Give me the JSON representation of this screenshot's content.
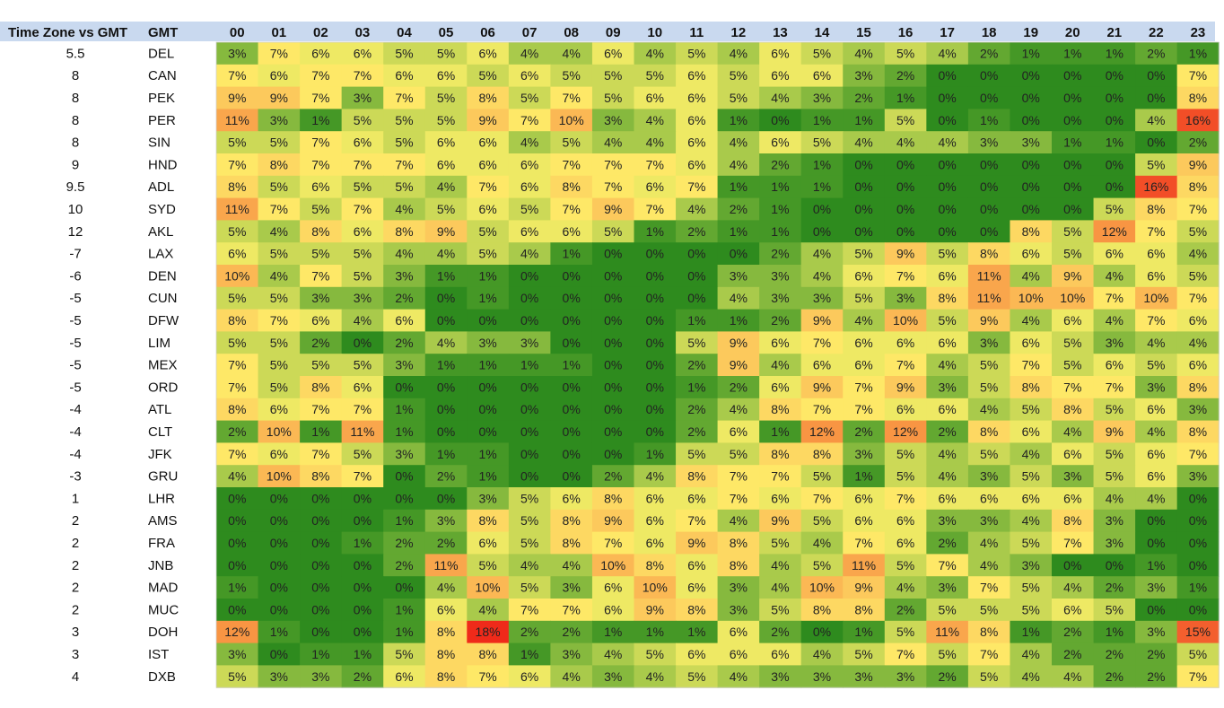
{
  "chart_data": {
    "type": "heatmap",
    "header": {
      "tz_label": "Time Zone vs GMT",
      "code_label": "GMT"
    },
    "columns": [
      "00",
      "01",
      "02",
      "03",
      "04",
      "05",
      "06",
      "07",
      "08",
      "09",
      "10",
      "11",
      "12",
      "13",
      "14",
      "15",
      "16",
      "17",
      "18",
      "19",
      "20",
      "21",
      "22",
      "23"
    ],
    "rows": [
      {
        "tz": "5.5",
        "code": "DEL",
        "values": [
          3,
          7,
          6,
          6,
          5,
          5,
          6,
          4,
          4,
          6,
          4,
          5,
          4,
          6,
          5,
          4,
          5,
          4,
          2,
          1,
          1,
          1,
          2,
          1
        ]
      },
      {
        "tz": "8",
        "code": "CAN",
        "values": [
          7,
          6,
          7,
          7,
          6,
          6,
          5,
          6,
          5,
          5,
          5,
          6,
          5,
          6,
          6,
          3,
          2,
          0,
          0,
          0,
          0,
          0,
          0,
          7
        ]
      },
      {
        "tz": "8",
        "code": "PEK",
        "values": [
          9,
          9,
          7,
          3,
          7,
          5,
          8,
          5,
          7,
          5,
          6,
          6,
          5,
          4,
          3,
          2,
          1,
          0,
          0,
          0,
          0,
          0,
          0,
          8
        ]
      },
      {
        "tz": "8",
        "code": "PER",
        "values": [
          11,
          3,
          1,
          5,
          5,
          5,
          9,
          7,
          10,
          3,
          4,
          6,
          1,
          0,
          1,
          1,
          5,
          0,
          1,
          0,
          0,
          0,
          4,
          16
        ]
      },
      {
        "tz": "8",
        "code": "SIN",
        "values": [
          5,
          5,
          7,
          6,
          5,
          6,
          6,
          4,
          5,
          4,
          4,
          6,
          4,
          6,
          5,
          4,
          4,
          4,
          3,
          3,
          1,
          1,
          0,
          2
        ]
      },
      {
        "tz": "9",
        "code": "HND",
        "values": [
          7,
          8,
          7,
          7,
          7,
          6,
          6,
          6,
          7,
          7,
          7,
          6,
          4,
          2,
          1,
          0,
          0,
          0,
          0,
          0,
          0,
          0,
          5,
          9
        ]
      },
      {
        "tz": "9.5",
        "code": "ADL",
        "values": [
          8,
          5,
          6,
          5,
          5,
          4,
          7,
          6,
          8,
          7,
          6,
          7,
          1,
          1,
          1,
          0,
          0,
          0,
          0,
          0,
          0,
          0,
          16,
          8
        ]
      },
      {
        "tz": "10",
        "code": "SYD",
        "values": [
          11,
          7,
          5,
          7,
          4,
          5,
          6,
          5,
          7,
          9,
          7,
          4,
          2,
          1,
          0,
          0,
          0,
          0,
          0,
          0,
          0,
          5,
          8,
          7
        ]
      },
      {
        "tz": "12",
        "code": "AKL",
        "values": [
          5,
          4,
          8,
          6,
          8,
          9,
          5,
          6,
          6,
          5,
          1,
          2,
          1,
          1,
          0,
          0,
          0,
          0,
          0,
          8,
          5,
          12,
          7,
          5
        ]
      },
      {
        "tz": "-7",
        "code": "LAX",
        "values": [
          6,
          5,
          5,
          5,
          4,
          4,
          5,
          4,
          1,
          0,
          0,
          0,
          0,
          2,
          4,
          5,
          9,
          5,
          8,
          6,
          5,
          6,
          6,
          4
        ]
      },
      {
        "tz": "-6",
        "code": "DEN",
        "values": [
          10,
          4,
          7,
          5,
          3,
          1,
          1,
          0,
          0,
          0,
          0,
          0,
          3,
          3,
          4,
          6,
          7,
          6,
          11,
          4,
          9,
          4,
          6,
          5
        ]
      },
      {
        "tz": "-5",
        "code": "CUN",
        "values": [
          5,
          5,
          3,
          3,
          2,
          0,
          1,
          0,
          0,
          0,
          0,
          0,
          4,
          3,
          3,
          5,
          3,
          8,
          11,
          10,
          10,
          7,
          10,
          7
        ]
      },
      {
        "tz": "-5",
        "code": "DFW",
        "values": [
          8,
          7,
          6,
          4,
          6,
          0,
          0,
          0,
          0,
          0,
          0,
          1,
          1,
          2,
          9,
          4,
          10,
          5,
          9,
          4,
          6,
          4,
          7,
          6
        ]
      },
      {
        "tz": "-5",
        "code": "LIM",
        "values": [
          5,
          5,
          2,
          0,
          2,
          4,
          3,
          3,
          0,
          0,
          0,
          5,
          9,
          6,
          7,
          6,
          6,
          6,
          3,
          6,
          5,
          3,
          4,
          4
        ]
      },
      {
        "tz": "-5",
        "code": "MEX",
        "values": [
          7,
          5,
          5,
          5,
          3,
          1,
          1,
          1,
          1,
          0,
          0,
          2,
          9,
          4,
          6,
          6,
          7,
          4,
          5,
          7,
          5,
          6,
          5,
          6
        ]
      },
      {
        "tz": "-5",
        "code": "ORD",
        "values": [
          7,
          5,
          8,
          6,
          0,
          0,
          0,
          0,
          0,
          0,
          0,
          1,
          2,
          6,
          9,
          7,
          9,
          3,
          5,
          8,
          7,
          7,
          3,
          8
        ]
      },
      {
        "tz": "-4",
        "code": "ATL",
        "values": [
          8,
          6,
          7,
          7,
          1,
          0,
          0,
          0,
          0,
          0,
          0,
          2,
          4,
          8,
          7,
          7,
          6,
          6,
          4,
          5,
          8,
          5,
          6,
          3
        ]
      },
      {
        "tz": "-4",
        "code": "CLT",
        "values": [
          2,
          10,
          1,
          11,
          1,
          0,
          0,
          0,
          0,
          0,
          0,
          2,
          6,
          1,
          12,
          2,
          12,
          2,
          8,
          6,
          4,
          9,
          4,
          8
        ]
      },
      {
        "tz": "-4",
        "code": "JFK",
        "values": [
          7,
          6,
          7,
          5,
          3,
          1,
          1,
          0,
          0,
          0,
          1,
          5,
          5,
          8,
          8,
          3,
          5,
          4,
          5,
          4,
          6,
          5,
          6,
          7
        ]
      },
      {
        "tz": "-3",
        "code": "GRU",
        "values": [
          4,
          10,
          8,
          7,
          0,
          2,
          1,
          0,
          0,
          2,
          4,
          8,
          7,
          7,
          5,
          1,
          5,
          4,
          3,
          5,
          3,
          5,
          6,
          3
        ]
      },
      {
        "tz": "1",
        "code": "LHR",
        "values": [
          0,
          0,
          0,
          0,
          0,
          0,
          3,
          5,
          6,
          8,
          6,
          6,
          7,
          6,
          7,
          6,
          7,
          6,
          6,
          6,
          6,
          4,
          4,
          0
        ]
      },
      {
        "tz": "2",
        "code": "AMS",
        "values": [
          0,
          0,
          0,
          0,
          1,
          3,
          8,
          5,
          8,
          9,
          6,
          7,
          4,
          9,
          5,
          6,
          6,
          3,
          3,
          4,
          8,
          3,
          0,
          0
        ]
      },
      {
        "tz": "2",
        "code": "FRA",
        "values": [
          0,
          0,
          0,
          1,
          2,
          2,
          6,
          5,
          8,
          7,
          6,
          9,
          8,
          5,
          4,
          7,
          6,
          2,
          4,
          5,
          7,
          3,
          0,
          0
        ]
      },
      {
        "tz": "2",
        "code": "JNB",
        "values": [
          0,
          0,
          0,
          0,
          2,
          11,
          5,
          4,
          4,
          10,
          8,
          6,
          8,
          4,
          5,
          11,
          5,
          7,
          4,
          3,
          0,
          0,
          1,
          0
        ]
      },
      {
        "tz": "2",
        "code": "MAD",
        "values": [
          1,
          0,
          0,
          0,
          0,
          4,
          10,
          5,
          3,
          6,
          10,
          6,
          3,
          4,
          10,
          9,
          4,
          3,
          7,
          5,
          4,
          2,
          3,
          1
        ]
      },
      {
        "tz": "2",
        "code": "MUC",
        "values": [
          0,
          0,
          0,
          0,
          1,
          6,
          4,
          7,
          7,
          6,
          9,
          8,
          3,
          5,
          8,
          8,
          2,
          5,
          5,
          5,
          6,
          5,
          0,
          0
        ]
      },
      {
        "tz": "3",
        "code": "DOH",
        "values": [
          12,
          1,
          0,
          0,
          1,
          8,
          18,
          2,
          2,
          1,
          1,
          1,
          6,
          2,
          0,
          1,
          5,
          11,
          8,
          1,
          2,
          1,
          3,
          15
        ]
      },
      {
        "tz": "3",
        "code": "IST",
        "values": [
          3,
          0,
          1,
          1,
          5,
          8,
          8,
          1,
          3,
          4,
          5,
          6,
          6,
          6,
          4,
          5,
          7,
          5,
          7,
          4,
          2,
          2,
          2,
          5
        ]
      },
      {
        "tz": "4",
        "code": "DXB",
        "values": [
          5,
          3,
          3,
          2,
          6,
          8,
          7,
          6,
          4,
          3,
          4,
          5,
          4,
          3,
          3,
          3,
          3,
          2,
          5,
          4,
          4,
          2,
          2,
          7
        ]
      }
    ],
    "unit": "%",
    "color_scale": {
      "low": "#2e8b1e",
      "mid": "#fff06a",
      "high": "#ef2a1a"
    }
  }
}
